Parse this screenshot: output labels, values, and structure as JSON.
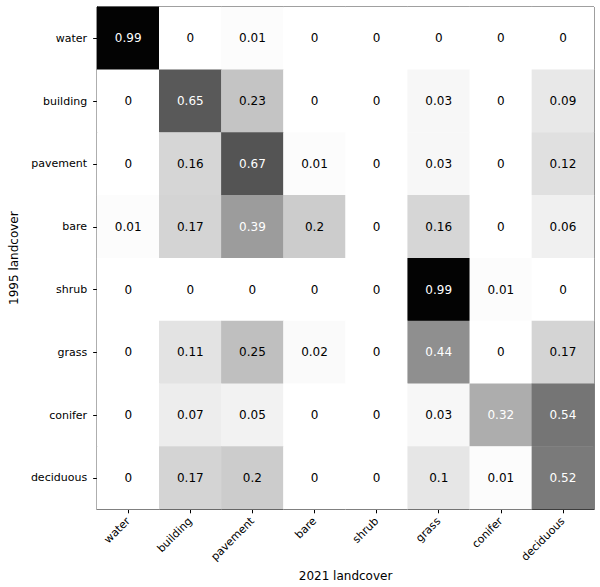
{
  "chart_data": {
    "type": "heatmap",
    "xlabel": "2021 landcover",
    "ylabel": "1995 landcover",
    "x": [
      "water",
      "building",
      "pavement",
      "bare",
      "shrub",
      "grass",
      "conifer",
      "deciduous"
    ],
    "y": [
      "water",
      "building",
      "pavement",
      "bare",
      "shrub",
      "grass",
      "conifer",
      "deciduous"
    ],
    "cells": [
      [
        0.99,
        0,
        0.01,
        0,
        0,
        0,
        0,
        0
      ],
      [
        0,
        0.65,
        0.23,
        0,
        0,
        0.03,
        0,
        0.09
      ],
      [
        0,
        0.16,
        0.67,
        0.01,
        0,
        0.03,
        0,
        0.12
      ],
      [
        0.01,
        0.17,
        0.39,
        0.2,
        0,
        0.16,
        0,
        0.06
      ],
      [
        0,
        0,
        0,
        0,
        0,
        0.99,
        0.01,
        0
      ],
      [
        0,
        0.11,
        0.25,
        0.02,
        0,
        0.44,
        0,
        0.17
      ],
      [
        0,
        0.07,
        0.05,
        0,
        0,
        0.03,
        0.32,
        0.54
      ],
      [
        0,
        0.17,
        0.2,
        0,
        0,
        0.1,
        0.01,
        0.52
      ]
    ],
    "color_range": [
      0,
      1
    ],
    "data_labels": true
  }
}
